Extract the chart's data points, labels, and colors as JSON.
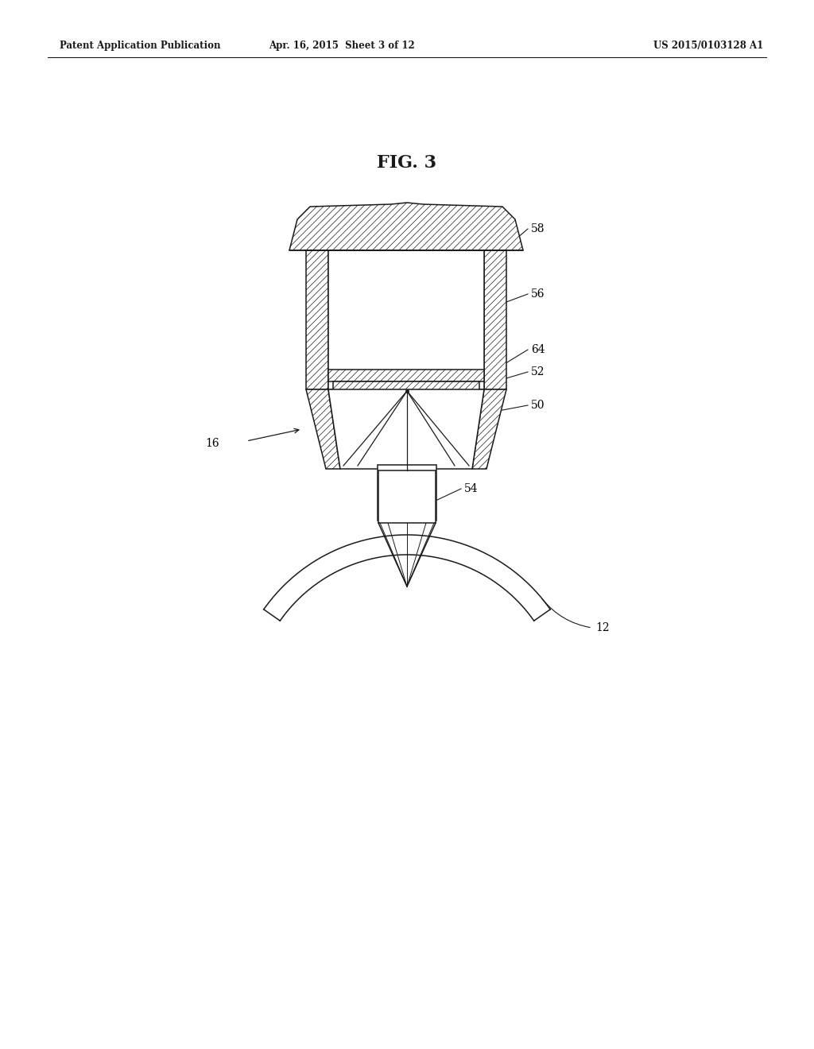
{
  "bg_color": "#ffffff",
  "line_color": "#1a1a1a",
  "header_left": "Patent Application Publication",
  "header_mid": "Apr. 16, 2015  Sheet 3 of 12",
  "header_right": "US 2015/0103128 A1",
  "fig_label": "FIG. 3",
  "lw": 1.1,
  "hatch_lw": 0.5,
  "label_fs": 10,
  "fig_label_fs": 16,
  "header_fs": 8.5
}
